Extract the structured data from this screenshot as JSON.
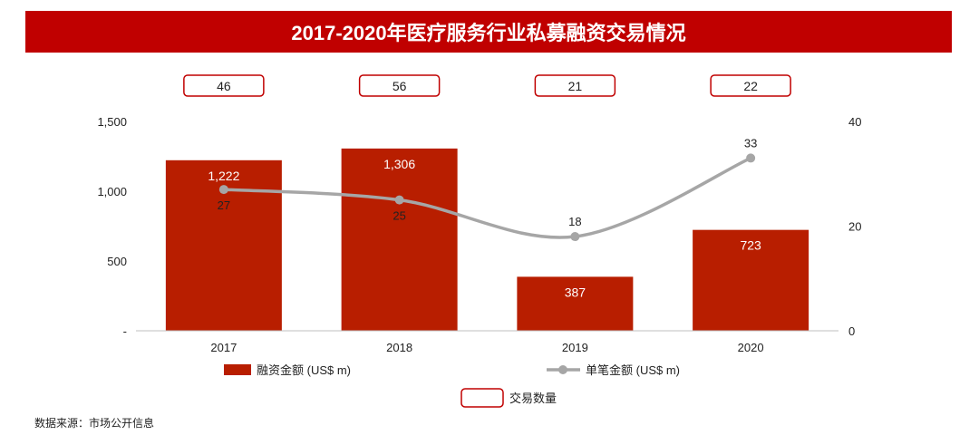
{
  "title": "2017-2020年医疗服务行业私募融资交易情况",
  "source": "数据来源：市场公开信息",
  "colors": {
    "brand": "#c00000",
    "bar": "#b81e00",
    "line": "#a6a6a6",
    "box_border": "#c00000"
  },
  "chart_data": {
    "type": "bar",
    "categories": [
      "2017",
      "2018",
      "2019",
      "2020"
    ],
    "series": [
      {
        "name": "融资金额 (US$ m)",
        "kind": "bar",
        "axis": "left",
        "values": [
          1222,
          1306,
          387,
          723
        ],
        "labels": [
          "1,222",
          "1,306",
          "387",
          "723"
        ]
      },
      {
        "name": "单笔金额 (US$ m)",
        "kind": "line",
        "axis": "right",
        "values": [
          27,
          25,
          18,
          33
        ],
        "labels": [
          "27",
          "25",
          "18",
          "33"
        ]
      },
      {
        "name": "交易数量",
        "kind": "box",
        "values": [
          46,
          56,
          21,
          22
        ],
        "labels": [
          "46",
          "56",
          "21",
          "22"
        ]
      }
    ],
    "y_left": {
      "range": [
        0,
        1500
      ],
      "ticks": [
        0,
        500,
        1000,
        1500
      ],
      "tick_labels": [
        "-",
        "500",
        "1,000",
        "1,500"
      ]
    },
    "y_right": {
      "range": [
        0,
        40
      ],
      "ticks": [
        0,
        20,
        40
      ],
      "tick_labels": [
        "0",
        "20",
        "40"
      ]
    },
    "grid": false,
    "legend_position": "bottom"
  }
}
